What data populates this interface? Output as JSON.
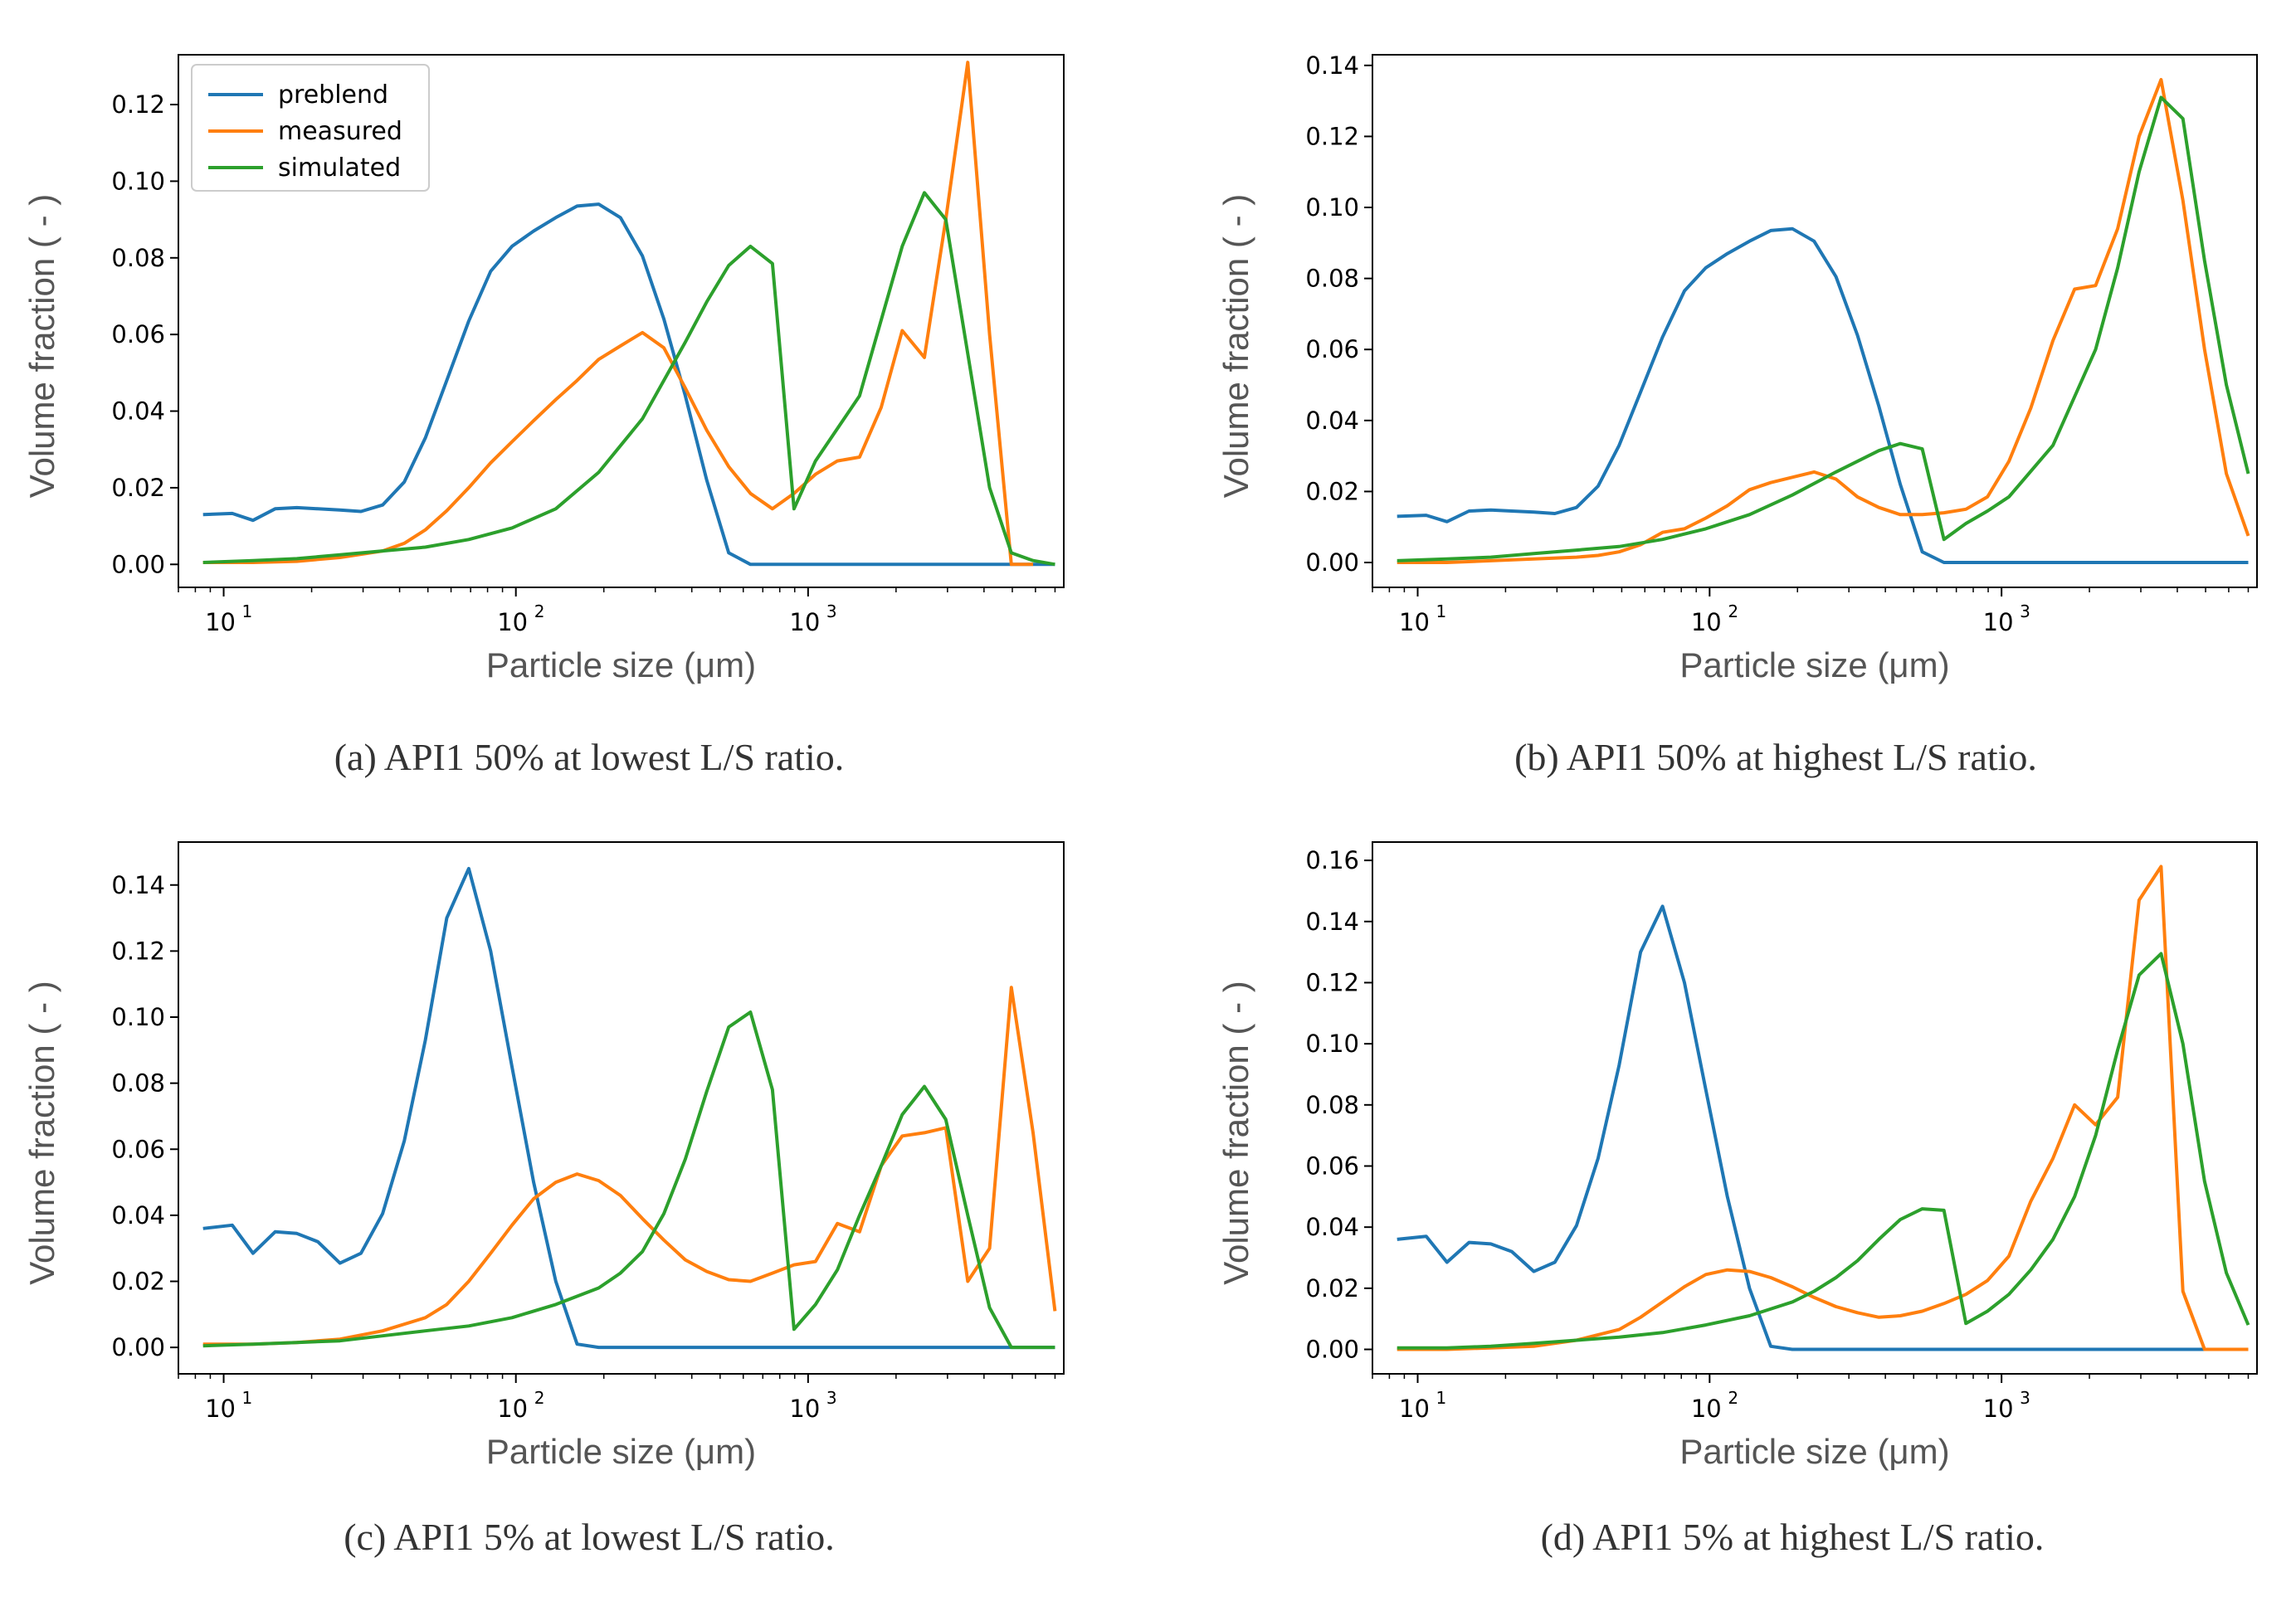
{
  "colors": {
    "preblend": "#1f77b4",
    "measured": "#ff7f0e",
    "simulated": "#2ca02c"
  },
  "chart_data": [
    {
      "type": "line",
      "caption": "(a) API1  50% at lowest L/S ratio.",
      "xlabel": "Particle size (μm)",
      "ylabel": "Volume fraction ( - )",
      "xscale": "log",
      "xlim": [
        7,
        7500
      ],
      "ylim": [
        -0.006,
        0.133
      ],
      "yticks": [
        "0.00",
        "0.02",
        "0.04",
        "0.06",
        "0.08",
        "0.10",
        "0.12"
      ],
      "xticks": [
        "10",
        "10",
        "10"
      ],
      "xtick_exponents": [
        "1",
        "2",
        "3"
      ],
      "legend": {
        "position": "top-left",
        "entries": [
          "preblend",
          "measured",
          "simulated"
        ]
      },
      "series": [
        {
          "name": "preblend",
          "color": "preblend",
          "x": [
            8.5,
            10.7,
            12.6,
            15,
            17.8,
            21,
            25,
            29.5,
            35,
            41.5,
            49,
            58,
            69,
            82,
            97,
            115,
            137,
            162,
            192,
            228,
            271,
            321,
            380,
            450,
            535,
            635,
            755,
            895,
            1060,
            1260,
            1500,
            1780,
            2100,
            2500,
            2960,
            3520,
            4180,
            4960,
            5890,
            7000
          ],
          "y": [
            0.013,
            0.0133,
            0.0115,
            0.0145,
            0.0148,
            0.0145,
            0.0142,
            0.0138,
            0.0155,
            0.0215,
            0.033,
            0.048,
            0.0635,
            0.0765,
            0.083,
            0.087,
            0.0905,
            0.0935,
            0.094,
            0.0905,
            0.0805,
            0.064,
            0.044,
            0.022,
            0.003,
            0.0,
            0.0,
            0.0,
            0.0,
            0.0,
            0.0,
            0.0,
            0.0,
            0.0,
            0.0,
            0.0,
            0.0,
            0.0,
            0.0,
            0.0
          ]
        },
        {
          "name": "measured",
          "color": "measured",
          "x": [
            8.5,
            12.6,
            17.8,
            25,
            35,
            41.5,
            49,
            58,
            69,
            82,
            97,
            115,
            137,
            162,
            192,
            228,
            271,
            321,
            380,
            450,
            535,
            635,
            755,
            895,
            1060,
            1260,
            1500,
            1780,
            2100,
            2500,
            2960,
            3520,
            4180,
            4960,
            5890
          ],
          "y": [
            0.0005,
            0.0005,
            0.0008,
            0.0018,
            0.0035,
            0.0055,
            0.009,
            0.014,
            0.02,
            0.0265,
            0.032,
            0.0375,
            0.043,
            0.048,
            0.0535,
            0.057,
            0.0605,
            0.0565,
            0.046,
            0.035,
            0.0255,
            0.0185,
            0.0145,
            0.0185,
            0.0235,
            0.027,
            0.028,
            0.041,
            0.061,
            0.054,
            0.09,
            0.131,
            0.06,
            0.0,
            0.0
          ]
        },
        {
          "name": "simulated",
          "color": "simulated",
          "x": [
            8.5,
            12.6,
            17.8,
            25,
            35,
            49,
            69,
            97,
            137,
            192,
            271,
            380,
            450,
            535,
            635,
            755,
            895,
            1060,
            1500,
            2100,
            2500,
            2960,
            3520,
            4180,
            4960,
            5890,
            7000
          ],
          "y": [
            0.0005,
            0.001,
            0.0015,
            0.0025,
            0.0035,
            0.0045,
            0.0065,
            0.0095,
            0.0145,
            0.024,
            0.038,
            0.058,
            0.0685,
            0.078,
            0.083,
            0.0785,
            0.0145,
            0.027,
            0.044,
            0.083,
            0.097,
            0.09,
            0.055,
            0.02,
            0.003,
            0.001,
            0.0
          ]
        }
      ]
    },
    {
      "type": "line",
      "caption": "(b) API1  50% at highest  L/S ratio.",
      "xlabel": "Particle size (μm)",
      "ylabel": "Volume fraction ( - )",
      "xscale": "log",
      "xlim": [
        7,
        7500
      ],
      "ylim": [
        -0.007,
        0.143
      ],
      "yticks": [
        "0.00",
        "0.02",
        "0.04",
        "0.06",
        "0.08",
        "0.10",
        "0.12",
        "0.14"
      ],
      "xticks": [
        "10",
        "10",
        "10"
      ],
      "xtick_exponents": [
        "1",
        "2",
        "3"
      ],
      "series": [
        {
          "name": "preblend",
          "color": "preblend",
          "x": [
            8.5,
            10.7,
            12.6,
            15,
            17.8,
            21,
            25,
            29.5,
            35,
            41.5,
            49,
            58,
            69,
            82,
            97,
            115,
            137,
            162,
            192,
            228,
            271,
            321,
            380,
            450,
            535,
            635,
            755,
            895,
            1060,
            1500,
            2100,
            2960,
            4180,
            5890,
            7000
          ],
          "y": [
            0.013,
            0.0133,
            0.0115,
            0.0145,
            0.0148,
            0.0145,
            0.0142,
            0.0138,
            0.0155,
            0.0215,
            0.033,
            0.048,
            0.0635,
            0.0765,
            0.083,
            0.087,
            0.0905,
            0.0935,
            0.094,
            0.0905,
            0.0805,
            0.064,
            0.044,
            0.022,
            0.003,
            0.0,
            0.0,
            0.0,
            0.0,
            0.0,
            0.0,
            0.0,
            0.0,
            0.0,
            0.0
          ]
        },
        {
          "name": "measured",
          "color": "measured",
          "x": [
            8.5,
            12.6,
            17.8,
            25,
            35,
            41.5,
            49,
            58,
            69,
            82,
            97,
            115,
            137,
            162,
            192,
            228,
            271,
            321,
            380,
            450,
            535,
            635,
            755,
            895,
            1060,
            1260,
            1500,
            1780,
            2100,
            2500,
            2960,
            3520,
            4180,
            4960,
            5890,
            7000
          ],
          "y": [
            0.0,
            0.0,
            0.0005,
            0.001,
            0.0015,
            0.002,
            0.003,
            0.005,
            0.0085,
            0.0095,
            0.0125,
            0.016,
            0.0205,
            0.0225,
            0.024,
            0.0255,
            0.0235,
            0.0185,
            0.0155,
            0.0135,
            0.0135,
            0.014,
            0.015,
            0.0185,
            0.0285,
            0.0435,
            0.0625,
            0.077,
            0.078,
            0.094,
            0.12,
            0.136,
            0.102,
            0.06,
            0.025,
            0.0075
          ]
        },
        {
          "name": "simulated",
          "color": "simulated",
          "x": [
            8.5,
            12.6,
            17.8,
            25,
            35,
            49,
            69,
            97,
            137,
            192,
            271,
            380,
            450,
            535,
            635,
            755,
            895,
            1060,
            1500,
            2100,
            2500,
            2960,
            3520,
            4180,
            4960,
            5890,
            7000
          ],
          "y": [
            0.0005,
            0.001,
            0.0015,
            0.0025,
            0.0035,
            0.0045,
            0.0065,
            0.0095,
            0.0135,
            0.019,
            0.0255,
            0.0315,
            0.0335,
            0.032,
            0.0065,
            0.011,
            0.0145,
            0.0185,
            0.033,
            0.06,
            0.083,
            0.11,
            0.131,
            0.125,
            0.085,
            0.05,
            0.025
          ]
        }
      ]
    },
    {
      "type": "line",
      "caption": "(c) API1  5% at lowest L/S ratio.",
      "xlabel": "Particle size (μm)",
      "ylabel": "Volume fraction ( - )",
      "xscale": "log",
      "xlim": [
        7,
        7500
      ],
      "ylim": [
        -0.008,
        0.153
      ],
      "yticks": [
        "0.00",
        "0.02",
        "0.04",
        "0.06",
        "0.08",
        "0.10",
        "0.12",
        "0.14"
      ],
      "xticks": [
        "10",
        "10",
        "10"
      ],
      "xtick_exponents": [
        "1",
        "2",
        "3"
      ],
      "series": [
        {
          "name": "preblend",
          "color": "preblend",
          "x": [
            8.5,
            10.7,
            12.6,
            15,
            17.8,
            21,
            25,
            29.5,
            35,
            41.5,
            49,
            58,
            69,
            82,
            97,
            115,
            137,
            162,
            192,
            228,
            271,
            321,
            380,
            450,
            635,
            1060,
            2100,
            4180,
            7000
          ],
          "y": [
            0.036,
            0.037,
            0.0285,
            0.035,
            0.0345,
            0.032,
            0.0255,
            0.0285,
            0.0405,
            0.0625,
            0.093,
            0.13,
            0.145,
            0.12,
            0.085,
            0.05,
            0.02,
            0.001,
            0.0,
            0.0,
            0.0,
            0.0,
            0.0,
            0.0,
            0.0,
            0.0,
            0.0,
            0.0,
            0.0
          ]
        },
        {
          "name": "measured",
          "color": "measured",
          "x": [
            8.5,
            12.6,
            17.8,
            25,
            35,
            49,
            58,
            69,
            82,
            97,
            115,
            137,
            162,
            192,
            228,
            271,
            321,
            380,
            450,
            535,
            635,
            755,
            895,
            1060,
            1260,
            1500,
            1780,
            2100,
            2500,
            2960,
            3520,
            4180,
            4960,
            5890,
            7000
          ],
          "y": [
            0.001,
            0.001,
            0.0015,
            0.0025,
            0.005,
            0.009,
            0.013,
            0.02,
            0.0285,
            0.037,
            0.045,
            0.05,
            0.0525,
            0.0505,
            0.046,
            0.039,
            0.0325,
            0.0265,
            0.023,
            0.0205,
            0.02,
            0.0225,
            0.025,
            0.026,
            0.0375,
            0.035,
            0.055,
            0.064,
            0.065,
            0.0665,
            0.02,
            0.03,
            0.109,
            0.065,
            0.011
          ]
        },
        {
          "name": "simulated",
          "color": "simulated",
          "x": [
            8.5,
            12.6,
            17.8,
            25,
            35,
            49,
            69,
            97,
            137,
            192,
            228,
            271,
            321,
            380,
            450,
            535,
            635,
            755,
            895,
            1060,
            1260,
            1500,
            1780,
            2100,
            2500,
            2960,
            3520,
            4180,
            4960,
            5890,
            7000
          ],
          "y": [
            0.0005,
            0.001,
            0.0015,
            0.002,
            0.0035,
            0.005,
            0.0065,
            0.009,
            0.013,
            0.018,
            0.0225,
            0.029,
            0.0405,
            0.057,
            0.0775,
            0.097,
            0.1015,
            0.078,
            0.0055,
            0.013,
            0.0235,
            0.04,
            0.055,
            0.0705,
            0.079,
            0.069,
            0.04,
            0.012,
            0.0,
            0.0,
            0.0
          ]
        }
      ]
    },
    {
      "type": "line",
      "caption": "(d) API1  5% at highest  L/S ratio.",
      "xlabel": "Particle size (μm)",
      "ylabel": "Volume fraction ( - )",
      "xscale": "log",
      "xlim": [
        7,
        7500
      ],
      "ylim": [
        -0.008,
        0.166
      ],
      "yticks": [
        "0.00",
        "0.02",
        "0.04",
        "0.06",
        "0.08",
        "0.10",
        "0.12",
        "0.14",
        "0.16"
      ],
      "xticks": [
        "10",
        "10",
        "10"
      ],
      "xtick_exponents": [
        "1",
        "2",
        "3"
      ],
      "series": [
        {
          "name": "preblend",
          "color": "preblend",
          "x": [
            8.5,
            10.7,
            12.6,
            15,
            17.8,
            21,
            25,
            29.5,
            35,
            41.5,
            49,
            58,
            69,
            82,
            97,
            115,
            137,
            162,
            192,
            228,
            271,
            321,
            380,
            450,
            635,
            1060,
            2100,
            4180,
            7000
          ],
          "y": [
            0.036,
            0.037,
            0.0285,
            0.035,
            0.0345,
            0.032,
            0.0255,
            0.0285,
            0.0405,
            0.0625,
            0.093,
            0.13,
            0.145,
            0.12,
            0.085,
            0.05,
            0.02,
            0.001,
            0.0,
            0.0,
            0.0,
            0.0,
            0.0,
            0.0,
            0.0,
            0.0,
            0.0,
            0.0,
            0.0
          ]
        },
        {
          "name": "measured",
          "color": "measured",
          "x": [
            8.5,
            12.6,
            17.8,
            25,
            35,
            49,
            58,
            69,
            82,
            97,
            115,
            137,
            162,
            192,
            228,
            271,
            321,
            380,
            450,
            535,
            635,
            755,
            895,
            1060,
            1260,
            1500,
            1780,
            2100,
            2500,
            2960,
            3520,
            4180,
            4960,
            5890,
            7000
          ],
          "y": [
            0.0,
            0.0,
            0.0005,
            0.001,
            0.003,
            0.0065,
            0.0105,
            0.0155,
            0.0205,
            0.0245,
            0.026,
            0.0255,
            0.0235,
            0.0205,
            0.017,
            0.014,
            0.012,
            0.0105,
            0.011,
            0.0125,
            0.015,
            0.018,
            0.0225,
            0.0305,
            0.0485,
            0.0625,
            0.08,
            0.0735,
            0.0825,
            0.147,
            0.158,
            0.019,
            0.0,
            0.0,
            0.0
          ]
        },
        {
          "name": "simulated",
          "color": "simulated",
          "x": [
            8.5,
            12.6,
            17.8,
            25,
            35,
            49,
            69,
            97,
            137,
            192,
            228,
            271,
            321,
            380,
            450,
            535,
            635,
            755,
            895,
            1060,
            1260,
            1500,
            1780,
            2100,
            2500,
            2960,
            3520,
            4180,
            4960,
            5890,
            7000
          ],
          "y": [
            0.0005,
            0.0005,
            0.001,
            0.002,
            0.003,
            0.004,
            0.0055,
            0.008,
            0.011,
            0.0155,
            0.019,
            0.0235,
            0.029,
            0.036,
            0.0425,
            0.046,
            0.0455,
            0.0085,
            0.0125,
            0.018,
            0.026,
            0.036,
            0.05,
            0.07,
            0.098,
            0.1225,
            0.1295,
            0.1,
            0.055,
            0.025,
            0.008
          ]
        }
      ]
    }
  ]
}
